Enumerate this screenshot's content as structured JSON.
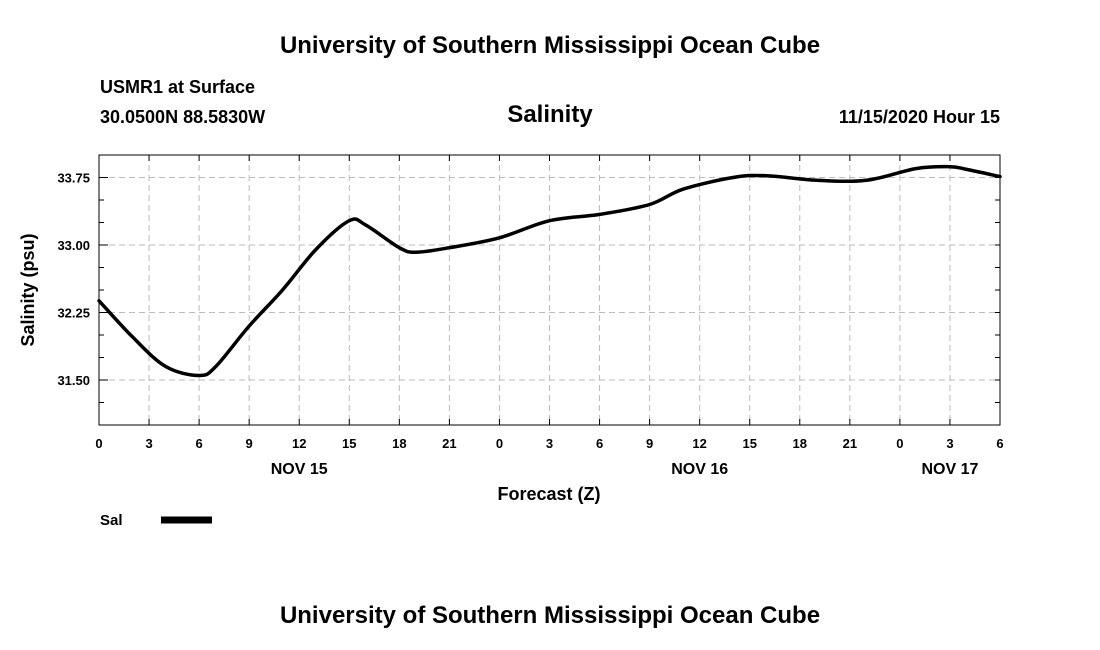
{
  "header": {
    "top_title": "University of Southern Mississippi Ocean Cube",
    "bottom_title": "University of Southern Mississippi Ocean Cube",
    "station": "USMR1 at Surface",
    "location": "30.0500N 88.5830W",
    "datetime": "11/15/2020 Hour 15"
  },
  "chart_data": {
    "type": "line",
    "title": "Salinity",
    "xlabel": "Forecast (Z)",
    "ylabel": "Salinity (psu)",
    "xlim": [
      0,
      54
    ],
    "ylim": [
      31.0,
      34.0
    ],
    "grid": true,
    "y_ticks": [
      31.5,
      32.25,
      33.0,
      33.75
    ],
    "y_tick_labels": [
      "31.50",
      "32.25",
      "33.00",
      "33.75"
    ],
    "x_tick_labels": [
      "0",
      "3",
      "6",
      "9",
      "12",
      "15",
      "18",
      "21",
      "0",
      "3",
      "6",
      "9",
      "12",
      "15",
      "18",
      "21",
      "0",
      "3",
      "6"
    ],
    "date_labels": [
      {
        "label": "NOV 15",
        "hour": 12
      },
      {
        "label": "NOV 16",
        "hour": 36
      },
      {
        "label": "NOV 17",
        "hour": 51
      }
    ],
    "series": [
      {
        "name": "Sal",
        "x": [
          0,
          2,
          4,
          6,
          7,
          9,
          11,
          13,
          15,
          16,
          18,
          19,
          21,
          24,
          27,
          30,
          33,
          35,
          38,
          40,
          43,
          46,
          49,
          51,
          52,
          54
        ],
        "values": [
          32.38,
          31.98,
          31.65,
          31.55,
          31.65,
          32.1,
          32.5,
          32.95,
          33.27,
          33.22,
          32.97,
          32.92,
          32.97,
          33.08,
          33.27,
          33.34,
          33.45,
          33.62,
          33.75,
          33.77,
          33.72,
          33.72,
          33.85,
          33.87,
          33.84,
          33.76
        ]
      }
    ],
    "legend": {
      "position": "bottom-left",
      "label": "Sal"
    }
  }
}
